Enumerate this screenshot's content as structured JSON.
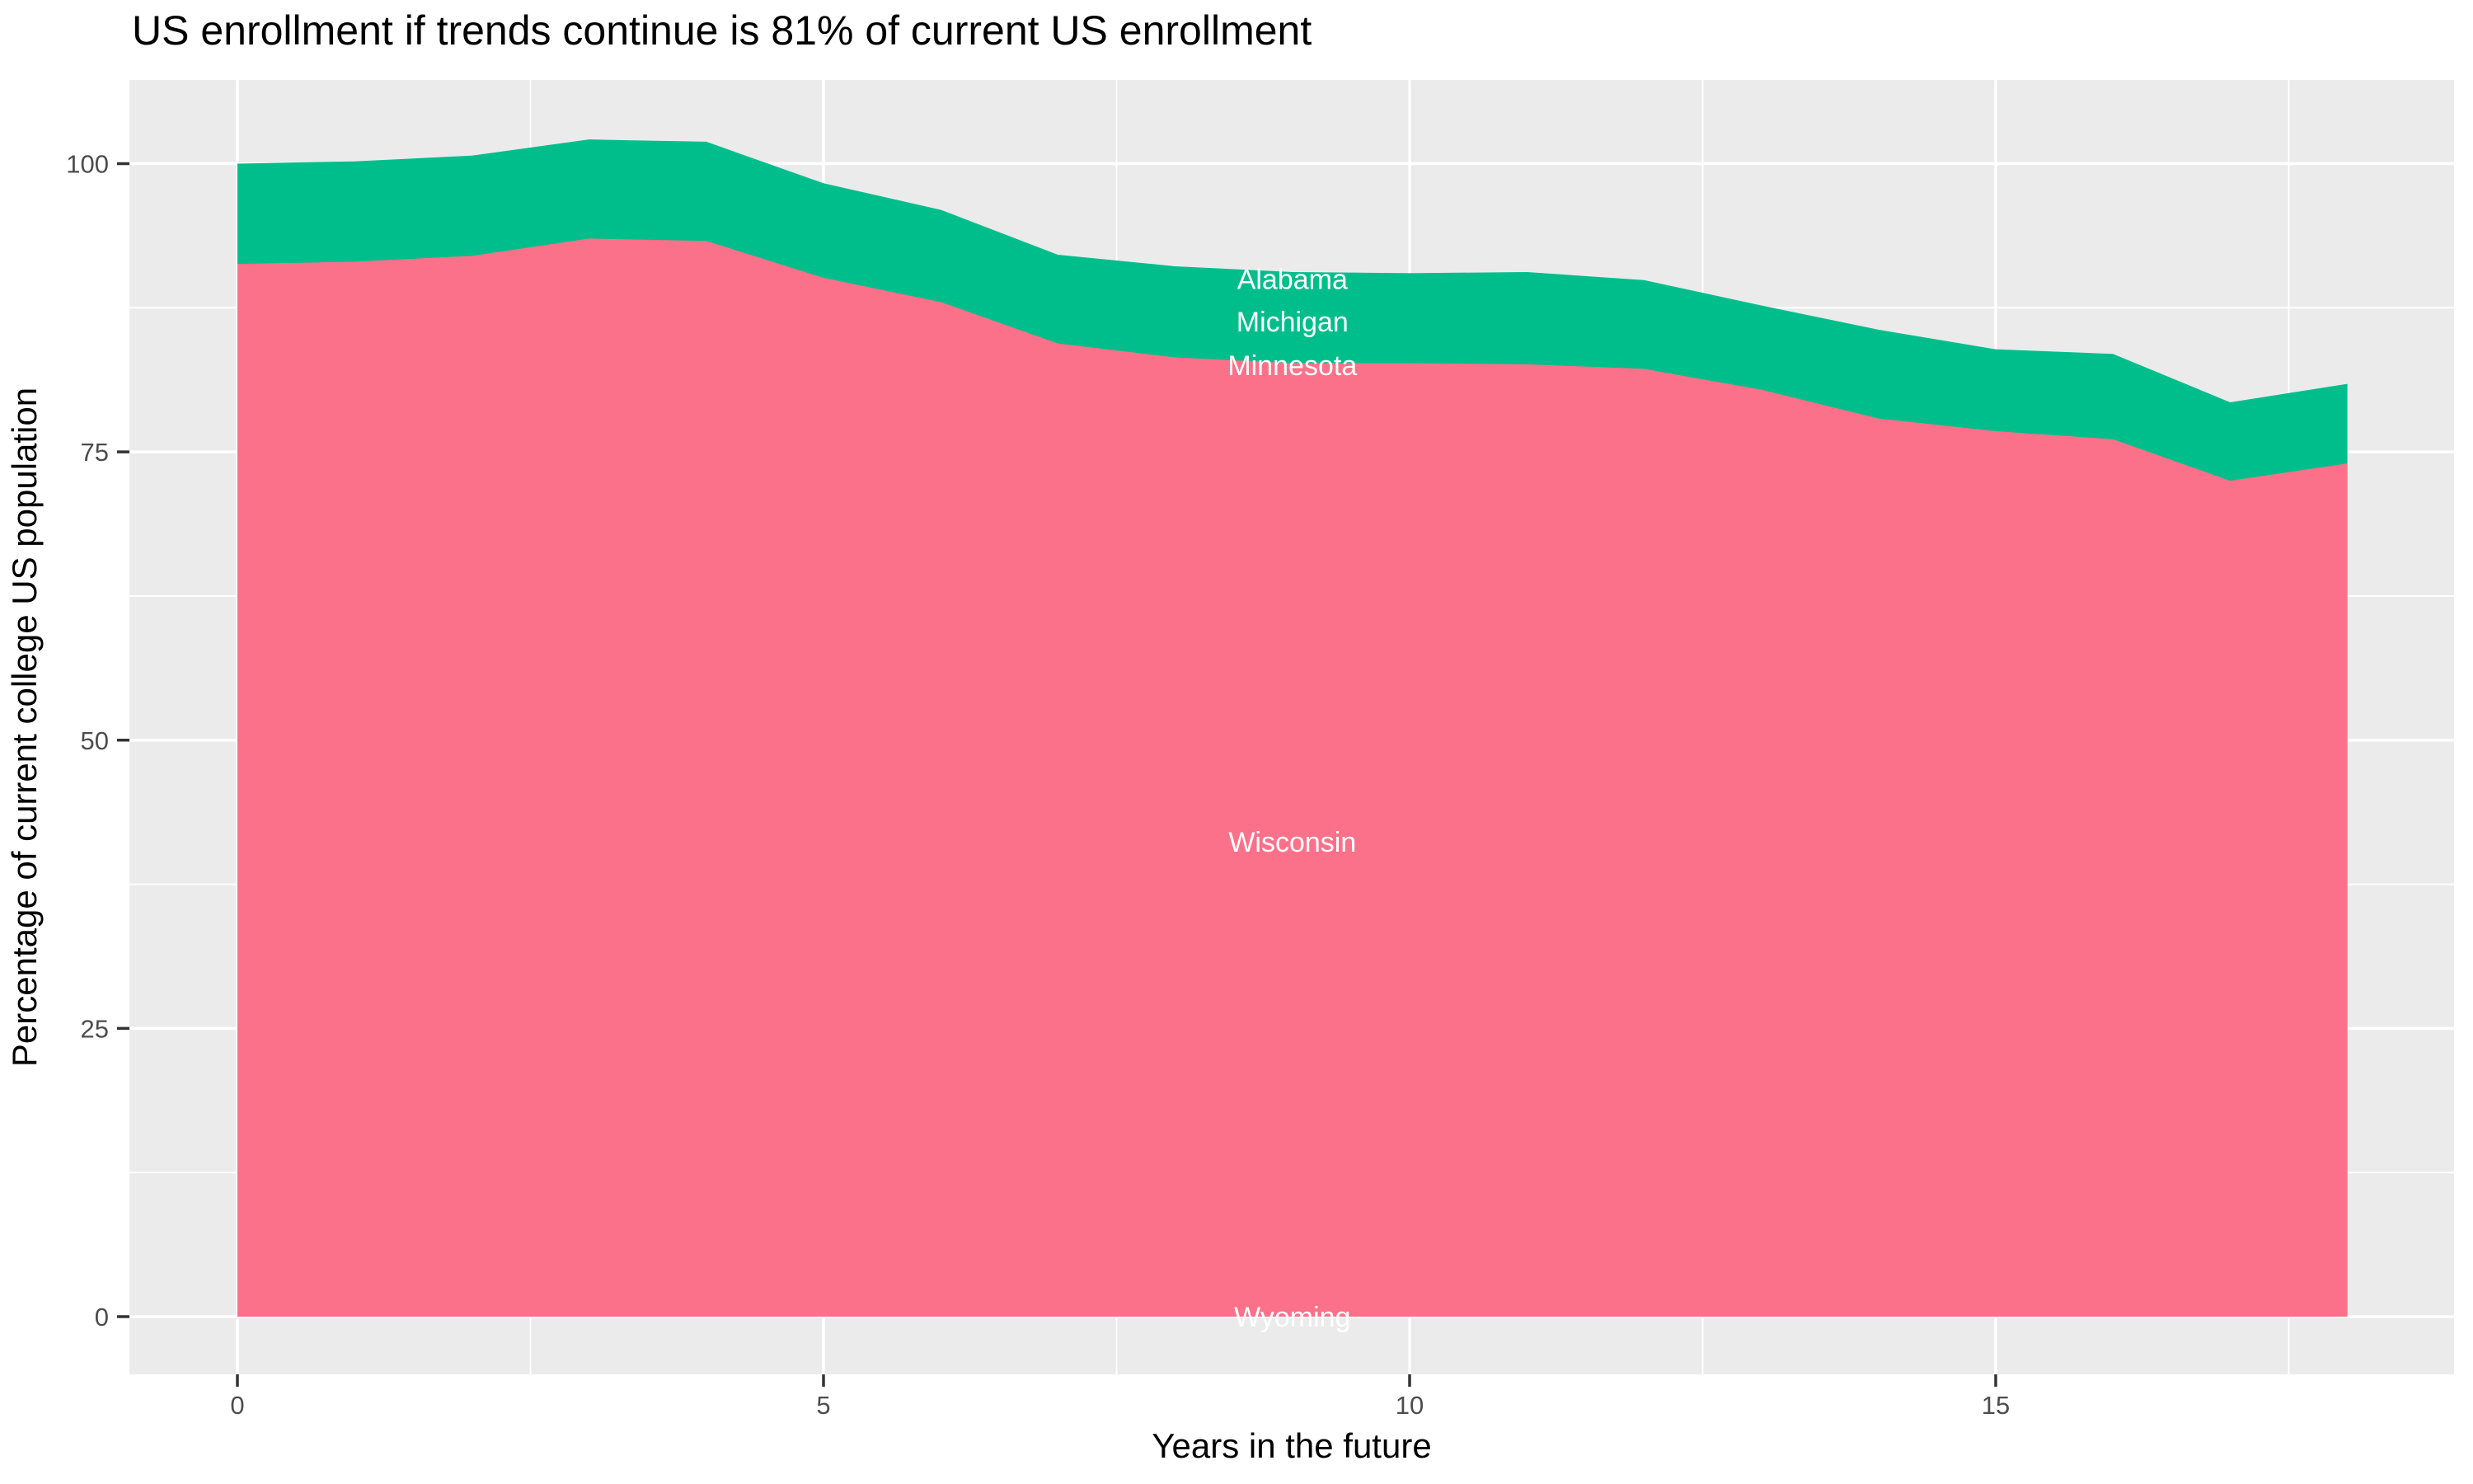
{
  "title": "US enrollment if trends continue is 81% of current US enrollment",
  "chart_data": {
    "type": "area",
    "stacked": true,
    "title": "US enrollment if trends continue is 81% of current US enrollment",
    "xlabel": "Years in the future",
    "ylabel": "Percentage of current college US population",
    "x": [
      0,
      1,
      2,
      3,
      4,
      5,
      6,
      7,
      8,
      9,
      10,
      11,
      12,
      13,
      14,
      15,
      16,
      17,
      18
    ],
    "series": [
      {
        "name": "wisconsin-wyoming-band",
        "states": [
          "Wyoming",
          "Wisconsin"
        ],
        "color": "#FB7189",
        "cumulative_top": [
          91.3,
          91.5,
          92.0,
          93.5,
          93.3,
          90.1,
          88.0,
          84.4,
          83.2,
          82.7,
          82.7,
          82.6,
          82.2,
          80.4,
          77.9,
          76.8,
          76.1,
          72.5,
          74.0
        ]
      },
      {
        "name": "minnesota-michigan-alabama-band",
        "states": [
          "Minnesota",
          "Michigan",
          "Alabama"
        ],
        "color": "#00BE8C",
        "cumulative_top": [
          100.0,
          100.2,
          100.7,
          102.1,
          101.9,
          98.3,
          96.0,
          92.1,
          91.1,
          90.6,
          90.5,
          90.6,
          89.9,
          87.7,
          85.6,
          83.9,
          83.5,
          79.3,
          80.9
        ]
      }
    ],
    "state_labels": [
      {
        "text": "Alabama",
        "x": 9.0,
        "y": 90.0
      },
      {
        "text": "Michigan",
        "x": 9.0,
        "y": 86.3
      },
      {
        "text": "Minnesota",
        "x": 9.0,
        "y": 82.5
      },
      {
        "text": "Wisconsin",
        "x": 9.0,
        "y": 41.2
      },
      {
        "text": "Wyoming",
        "x": 9.0,
        "y": 0.0
      }
    ],
    "x_ticks": [
      0,
      5,
      10,
      15
    ],
    "x_tick_labels": [
      "0",
      "5",
      "10",
      "15"
    ],
    "x_minor_ticks": [
      2.5,
      7.5,
      12.5,
      17.5
    ],
    "y_ticks": [
      0,
      25,
      50,
      75,
      100
    ],
    "y_tick_labels": [
      "0",
      "25",
      "50",
      "75",
      "100"
    ],
    "y_minor_ticks": [
      12.5,
      37.5,
      62.5,
      87.5
    ],
    "xlim": [
      -0.9,
      18.9
    ],
    "ylim": [
      -5.0,
      107.3
    ],
    "grid": "on",
    "legend": "none",
    "colors": {
      "panel_background": "#EBEBEB",
      "gridline": "#FFFFFF",
      "tick_mark": "#333333",
      "tick_label": "#4D4D4D",
      "title_text": "#000000",
      "axis_title_text": "#000000",
      "state_label_text": "#FFFFFF"
    }
  }
}
